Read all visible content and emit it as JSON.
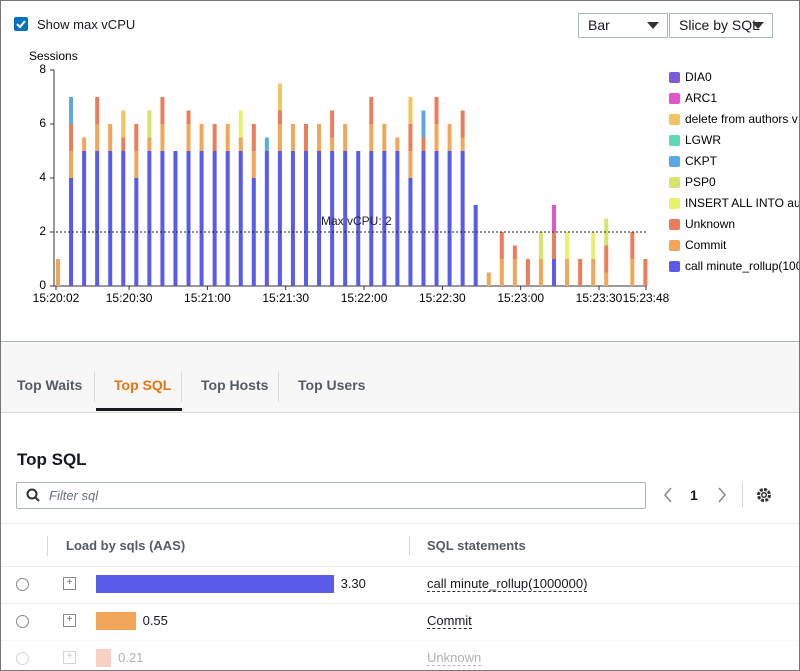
{
  "header": {
    "checkbox_label": "Show max vCPU",
    "checked": true,
    "view_select": "Bar",
    "slice_select": "Slice by SQL"
  },
  "chart_data": {
    "type": "bar",
    "stacked": true,
    "y_label": "Sessions",
    "x": [
      0,
      5,
      10,
      15,
      20,
      25,
      30,
      35,
      40,
      45,
      50,
      55,
      60,
      65,
      70,
      75,
      80,
      85,
      90,
      95,
      100,
      105,
      110,
      115,
      120,
      125,
      130,
      135,
      140,
      145,
      150,
      155,
      160,
      165,
      170,
      175,
      180,
      185,
      190,
      195,
      200,
      205,
      210,
      215,
      220,
      225
    ],
    "xlim": [
      0,
      226
    ],
    "xticks": [
      {
        "value": 0,
        "label": "15:20:02"
      },
      {
        "value": 28,
        "label": "15:20:30"
      },
      {
        "value": 58,
        "label": "15:21:00"
      },
      {
        "value": 88,
        "label": "15:21:30"
      },
      {
        "value": 118,
        "label": "15:22:00"
      },
      {
        "value": 148,
        "label": "15:22:30"
      },
      {
        "value": 178,
        "label": "15:23:00"
      },
      {
        "value": 208,
        "label": "15:23:30"
      },
      {
        "value": 226,
        "label": "15:23:48"
      }
    ],
    "ylim": [
      0,
      8
    ],
    "yticks": [
      0,
      2,
      4,
      6,
      8
    ],
    "max_vcpu": 2,
    "max_vcpu_label": "Max vCPU: 2",
    "series": [
      {
        "name": "DIA0",
        "color": "#7d5bd6",
        "values": [
          0,
          0,
          0,
          0,
          0,
          0,
          0,
          0,
          0,
          0,
          0,
          0,
          0,
          0,
          0,
          0,
          0,
          0,
          0,
          0,
          0,
          0,
          0,
          0,
          0,
          0,
          0,
          0,
          0,
          0,
          0,
          0,
          0,
          0,
          0,
          0,
          0,
          0,
          0,
          0,
          0,
          0,
          0,
          0,
          0,
          0
        ]
      },
      {
        "name": "ARC1",
        "color": "#e255c9",
        "values": [
          0,
          0,
          0,
          0,
          0,
          0,
          0,
          0,
          0,
          0,
          0,
          0,
          0,
          0,
          0,
          0,
          0,
          0,
          0,
          0,
          0,
          0,
          0,
          0,
          0,
          0,
          0,
          0,
          0,
          0,
          0,
          0,
          0,
          0,
          0,
          0,
          0,
          0,
          1,
          0,
          0,
          0,
          0,
          0,
          0,
          0
        ]
      },
      {
        "name": "delete from authors v",
        "color": "#f3c35f",
        "values": [
          0,
          0,
          0,
          0,
          0,
          1,
          0,
          0,
          0,
          0,
          0,
          0,
          0,
          0,
          0,
          0,
          0,
          1,
          0,
          0,
          0,
          0,
          0,
          0,
          0,
          0,
          0,
          1,
          0,
          0,
          0,
          0,
          0,
          0,
          0,
          0,
          0,
          0,
          0,
          0,
          0,
          0,
          0,
          0,
          0,
          0
        ]
      },
      {
        "name": "LGWR",
        "color": "#5fd8b4",
        "values": [
          0,
          0,
          0,
          0,
          0,
          0,
          0,
          0,
          0,
          0,
          0,
          0,
          0,
          0,
          0,
          0,
          0,
          0,
          0,
          0,
          0,
          0,
          0,
          0,
          0,
          0,
          0,
          0,
          0,
          0,
          0,
          0,
          0,
          0,
          0,
          0,
          0,
          0,
          0,
          0,
          0,
          0,
          0,
          0,
          0,
          0
        ]
      },
      {
        "name": "CKPT",
        "color": "#5aa9e6",
        "values": [
          0,
          1,
          0,
          0,
          0,
          0,
          0,
          0,
          0,
          0,
          0,
          0,
          0,
          0,
          0,
          0,
          0.5,
          0,
          0,
          0,
          0,
          0,
          0,
          0,
          0,
          0,
          0,
          0,
          1,
          0,
          0,
          0,
          0,
          0,
          0,
          0,
          0,
          0,
          0,
          0,
          0,
          0,
          0,
          0,
          0,
          0
        ]
      },
      {
        "name": "PSP0",
        "color": "#d6e46a",
        "values": [
          0,
          0,
          0,
          0,
          0,
          0,
          0,
          1,
          0,
          0,
          0,
          0,
          0,
          0,
          0,
          0,
          0,
          0,
          0,
          0,
          0,
          0,
          0,
          0,
          0,
          0,
          0,
          0,
          0,
          0,
          0,
          0,
          0,
          0,
          0,
          0,
          0,
          1,
          0,
          0,
          0,
          0,
          1,
          0,
          0,
          0
        ]
      },
      {
        "name": "INSERT ALL   INTO au",
        "color": "#e9f06c",
        "values": [
          0,
          0,
          0,
          0,
          0,
          0,
          0,
          0,
          0,
          0,
          0,
          0,
          0,
          0,
          1,
          0,
          0,
          0,
          0,
          0,
          0,
          0,
          0,
          0,
          0,
          0,
          0,
          0,
          0,
          0,
          0,
          0,
          0,
          0,
          0,
          0,
          0,
          0,
          0,
          1,
          0,
          1,
          0,
          0,
          0,
          0
        ]
      },
      {
        "name": "Unknown",
        "color": "#ec7d5a",
        "values": [
          0,
          1,
          0,
          1,
          0,
          0.5,
          1,
          0,
          1,
          0,
          0.5,
          0,
          1,
          0,
          0,
          1,
          0,
          0.5,
          0,
          1,
          0,
          1,
          0,
          0,
          1,
          0,
          0,
          1,
          0.5,
          1,
          0,
          1,
          0,
          0,
          1,
          0.5,
          1,
          0,
          1,
          0,
          1,
          0,
          1,
          0,
          1,
          1
        ]
      },
      {
        "name": "Commit",
        "color": "#f2a65a",
        "values": [
          1,
          1,
          0.5,
          1,
          1,
          0,
          1,
          0.5,
          1,
          0,
          1,
          1,
          0,
          1,
          0.5,
          1,
          0,
          1,
          1,
          0,
          1,
          0.5,
          1,
          0,
          1,
          1,
          0.5,
          1,
          0,
          1,
          1,
          0.5,
          0,
          0.5,
          1,
          1,
          0,
          1,
          0,
          1,
          0,
          1,
          0.5,
          0,
          1,
          0
        ]
      },
      {
        "name": "call minute_rollup(100",
        "color": "#5b5bea",
        "values": [
          0,
          4,
          5,
          5,
          5,
          5,
          4,
          5,
          5,
          5,
          5,
          5,
          5,
          5,
          5,
          4,
          5,
          5,
          5,
          5,
          5,
          5,
          5,
          5,
          5,
          5,
          5,
          4,
          5,
          5,
          5,
          5,
          3,
          0,
          0,
          0,
          0,
          0,
          1,
          0,
          0,
          0,
          0,
          0,
          0,
          0
        ]
      }
    ]
  },
  "tabs": [
    "Top Waits",
    "Top SQL",
    "Top Hosts",
    "Top Users"
  ],
  "section_title": "Top SQL",
  "filter_placeholder": "Filter sql",
  "page": 1,
  "table": {
    "columns": [
      "Load by sqls (AAS)",
      "SQL statements"
    ],
    "rows": [
      {
        "load": 3.3,
        "load_label": "3.30",
        "color": "#5b5bea",
        "sql": "call minute_rollup(1000000)"
      },
      {
        "load": 0.55,
        "load_label": "0.55",
        "color": "#f2a65a",
        "sql": "Commit"
      },
      {
        "load": 0.21,
        "load_label": "0.21",
        "color": "#ec7d5a",
        "sql": "Unknown"
      }
    ]
  }
}
